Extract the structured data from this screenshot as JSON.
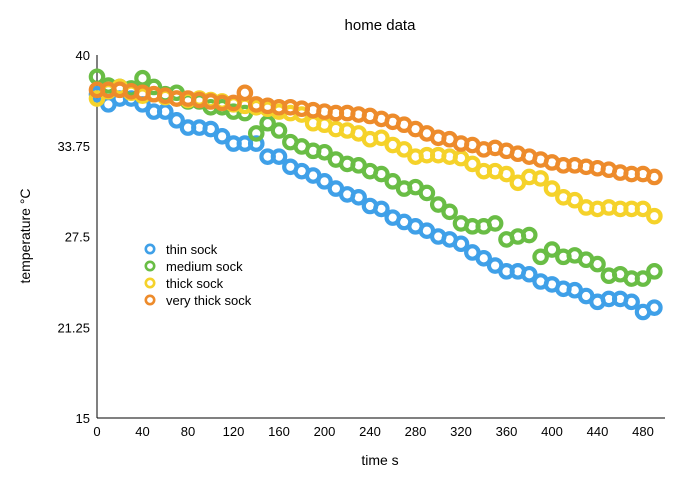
{
  "chart_data": {
    "type": "scatter",
    "title": "home data",
    "xlabel": "time s",
    "ylabel": "temperature °C",
    "xlim": [
      0,
      520
    ],
    "ylim": [
      15,
      40
    ],
    "xticks": [
      "0",
      "40",
      "80",
      "120",
      "160",
      "200",
      "240",
      "280",
      "320",
      "360",
      "400",
      "440",
      "480"
    ],
    "yticks": [
      "15",
      "21.25",
      "27.5",
      "33.75",
      "40"
    ],
    "x_tick_values": [
      0,
      40,
      80,
      120,
      160,
      200,
      240,
      280,
      320,
      360,
      400,
      440,
      480
    ],
    "y_tick_values": [
      15,
      21.25,
      27.5,
      33.75,
      40
    ],
    "grid": false,
    "legend_position": "left-middle",
    "x": [
      0,
      10,
      20,
      30,
      40,
      50,
      60,
      70,
      80,
      90,
      100,
      110,
      120,
      130,
      140,
      150,
      160,
      170,
      180,
      190,
      200,
      210,
      220,
      230,
      240,
      250,
      260,
      270,
      280,
      290,
      300,
      310,
      320,
      330,
      340,
      350,
      360,
      370,
      380,
      390,
      400,
      410,
      420,
      430,
      440,
      450,
      460,
      470,
      480,
      490
    ],
    "series": [
      {
        "name": "thin sock",
        "color": "#3fa0e8",
        "values": [
          37.3,
          36.6,
          37.0,
          37.0,
          36.6,
          36.1,
          36.1,
          35.5,
          35.0,
          35.0,
          34.9,
          34.4,
          33.9,
          33.9,
          33.9,
          33.0,
          33.0,
          32.3,
          32.0,
          31.7,
          31.3,
          30.8,
          30.4,
          30.2,
          29.6,
          29.4,
          28.8,
          28.5,
          28.2,
          27.9,
          27.5,
          27.3,
          27.0,
          26.4,
          26.0,
          25.5,
          25.1,
          25.1,
          24.9,
          24.4,
          24.2,
          23.9,
          23.8,
          23.4,
          23.0,
          23.2,
          23.2,
          23.0,
          22.3,
          22.6
        ]
      },
      {
        "name": "medium sock",
        "color": "#69bd45",
        "values": [
          38.5,
          37.9,
          37.8,
          37.7,
          38.4,
          37.8,
          37.3,
          37.4,
          36.8,
          36.8,
          36.4,
          36.4,
          36.1,
          36.0,
          34.6,
          35.3,
          34.8,
          34.0,
          33.7,
          33.4,
          33.3,
          32.8,
          32.5,
          32.4,
          32.0,
          31.8,
          31.3,
          30.8,
          30.9,
          30.5,
          29.7,
          29.2,
          28.4,
          28.2,
          28.2,
          28.4,
          27.3,
          27.5,
          27.6,
          26.1,
          26.6,
          26.1,
          26.2,
          25.9,
          25.6,
          24.8,
          24.9,
          24.6,
          24.6,
          25.1
        ]
      },
      {
        "name": "thick sock",
        "color": "#f5d22a",
        "values": [
          37.0,
          37.5,
          37.8,
          37.4,
          37.2,
          37.3,
          37.1,
          37.0,
          36.9,
          37.0,
          36.9,
          36.8,
          36.6,
          36.5,
          36.4,
          36.3,
          36.1,
          36.0,
          35.9,
          35.3,
          35.2,
          34.9,
          34.8,
          34.6,
          34.2,
          34.3,
          33.8,
          33.5,
          33.0,
          33.1,
          33.1,
          33.0,
          32.9,
          32.5,
          32.0,
          32.0,
          31.8,
          31.2,
          31.6,
          31.5,
          30.8,
          30.2,
          30.0,
          29.5,
          29.4,
          29.5,
          29.4,
          29.4,
          29.4,
          28.9
        ]
      },
      {
        "name": "very thick sock",
        "color": "#ed8b2b",
        "values": [
          37.6,
          37.6,
          37.6,
          37.5,
          37.4,
          37.3,
          37.2,
          37.0,
          37.0,
          36.9,
          36.8,
          36.7,
          36.7,
          37.4,
          36.6,
          36.5,
          36.4,
          36.4,
          36.3,
          36.2,
          36.1,
          36.0,
          36.0,
          35.9,
          35.8,
          35.6,
          35.4,
          35.2,
          34.9,
          34.6,
          34.3,
          34.2,
          33.9,
          33.8,
          33.5,
          33.6,
          33.4,
          33.2,
          33.0,
          32.8,
          32.6,
          32.4,
          32.4,
          32.3,
          32.2,
          32.1,
          31.9,
          31.8,
          31.8,
          31.6
        ]
      }
    ]
  }
}
